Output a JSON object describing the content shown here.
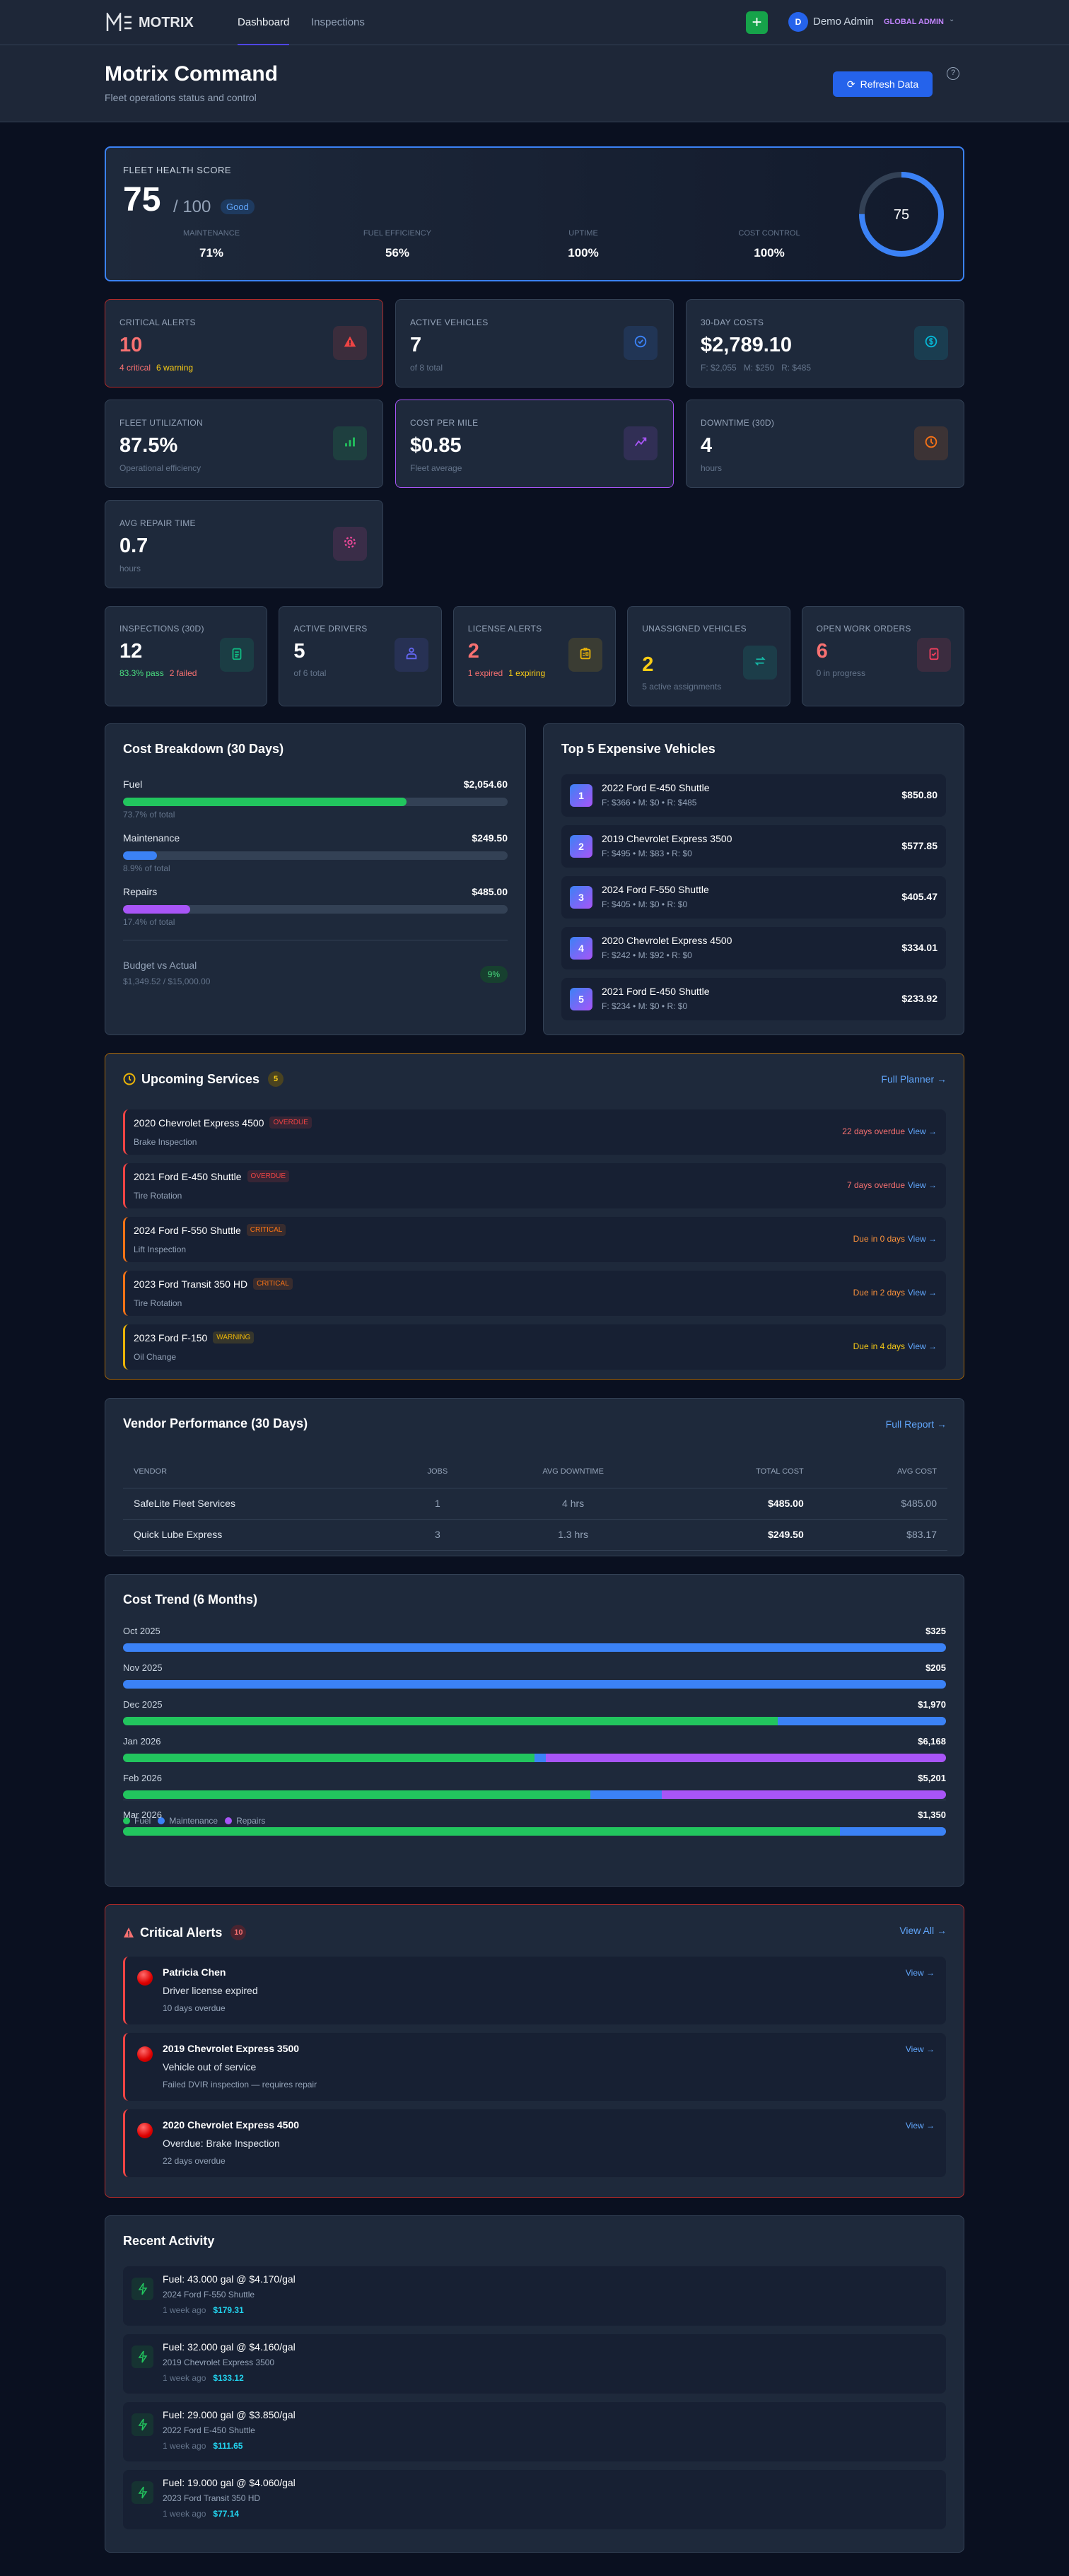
{
  "nav": {
    "brand": "MOTRIX",
    "tabs": [
      "Dashboard",
      "Inspections"
    ],
    "add_label": "+",
    "user_initial": "D",
    "user_name": "Demo Admin",
    "user_role": "GLOBAL ADMIN"
  },
  "header": {
    "title": "Motrix Command",
    "subtitle": "Fleet operations status and control",
    "refresh_label": "Refresh Data",
    "help": "?"
  },
  "health": {
    "label": "FLEET HEALTH SCORE",
    "score": "75",
    "max": "/ 100",
    "status": "Good",
    "score_value": 75,
    "metrics": [
      {
        "label": "MAINTENANCE",
        "value": "71%"
      },
      {
        "label": "FUEL EFFICIENCY",
        "value": "56%"
      },
      {
        "label": "UPTIME",
        "value": "100%"
      },
      {
        "label": "COST CONTROL",
        "value": "100%"
      }
    ]
  },
  "stats": [
    {
      "label": "CRITICAL ALERTS",
      "value": "10",
      "sub": [
        "4 critical",
        "6 warning"
      ],
      "icon": "alert-triangle-icon",
      "color": "#ef4444"
    },
    {
      "label": "ACTIVE VEHICLES",
      "value": "7",
      "sub": [
        "of 8 total"
      ],
      "icon": "check-circle-icon",
      "color": "#3b82f6"
    },
    {
      "label": "30-DAY COSTS",
      "value": "$2,789.10",
      "sub": [
        "F: $2,055   M: $250   R: $485"
      ],
      "icon": "dollar-icon",
      "color": "#06b6d4"
    },
    {
      "label": "FLEET UTILIZATION",
      "value": "87.5%",
      "sub": [
        "Operational efficiency"
      ],
      "icon": "bar-chart-icon",
      "color": "#22c55e"
    },
    {
      "label": "COST PER MILE",
      "value": "$0.85",
      "sub": [
        "Fleet average"
      ],
      "icon": "trending-up-icon",
      "color": "#a855f7"
    },
    {
      "label": "DOWNTIME (30D)",
      "value": "4",
      "sub": [
        "hours"
      ],
      "icon": "clock-icon",
      "color": "#f97316"
    },
    {
      "label": "AVG REPAIR TIME",
      "value": "0.7",
      "sub": [
        "hours"
      ],
      "icon": "gear-icon",
      "color": "#ec4899"
    }
  ],
  "stats2": [
    {
      "label": "INSPECTIONS (30D)",
      "value": "12",
      "sub": [
        "83.3% pass",
        "2 failed"
      ],
      "icon": "clipboard-icon",
      "color": "#10b981"
    },
    {
      "label": "ACTIVE DRIVERS",
      "value": "5",
      "sub": [
        "of 6 total"
      ],
      "icon": "user-icon",
      "color": "#6366f1"
    },
    {
      "label": "LICENSE ALERTS",
      "value": "2",
      "sub": [
        "1 expired",
        "1 expiring"
      ],
      "icon": "id-card-icon",
      "color": "#eab308"
    },
    {
      "label": "UNASSIGNED VEHICLES",
      "value": "2",
      "sub": [
        "5 active assignments"
      ],
      "icon": "swap-icon",
      "color": "#14b8a6"
    },
    {
      "label": "OPEN WORK ORDERS",
      "value": "6",
      "sub": [
        "0 in progress"
      ],
      "icon": "clipboard-check-icon",
      "color": "#f43f5e"
    }
  ],
  "cost_breakdown": {
    "title": "Cost Breakdown (30 Days)",
    "items": [
      {
        "name": "Fuel",
        "amount": "$2,054.60",
        "pct": 73.7,
        "pct_label": "73.7% of total",
        "color": "#22c55e"
      },
      {
        "name": "Maintenance",
        "amount": "$249.50",
        "pct": 8.9,
        "pct_label": "8.9% of total",
        "color": "#3b82f6"
      },
      {
        "name": "Repairs",
        "amount": "$485.00",
        "pct": 17.4,
        "pct_label": "17.4% of total",
        "color": "#a855f7"
      }
    ],
    "budget_label": "Budget vs Actual",
    "budget_value": "$1,349.52 / $15,000.00",
    "budget_pct": "9%"
  },
  "top_vehicles": {
    "title": "Top 5 Expensive Vehicles",
    "items": [
      {
        "rank": "1",
        "name": "2022 Ford E-450 Shuttle",
        "split": "F: $366 • M: $0 • R: $485",
        "cost": "$850.80"
      },
      {
        "rank": "2",
        "name": "2019 Chevrolet Express 3500",
        "split": "F: $495 • M: $83 • R: $0",
        "cost": "$577.85"
      },
      {
        "rank": "3",
        "name": "2024 Ford F-550 Shuttle",
        "split": "F: $405 • M: $0 • R: $0",
        "cost": "$405.47"
      },
      {
        "rank": "4",
        "name": "2020 Chevrolet Express 4500",
        "split": "F: $242 • M: $92 • R: $0",
        "cost": "$334.01"
      },
      {
        "rank": "5",
        "name": "2021 Ford E-450 Shuttle",
        "split": "F: $234 • M: $0 • R: $0",
        "cost": "$233.92"
      }
    ]
  },
  "services": {
    "title": "Upcoming Services",
    "count": "5",
    "link": "Full Planner →",
    "items": [
      {
        "vehicle": "2020 Chevrolet Express 4500",
        "badge": "OVERDUE",
        "task": "Brake Inspection",
        "due": "22 days overdue",
        "view": "View →",
        "color": "#ef4444"
      },
      {
        "vehicle": "2021 Ford E-450 Shuttle",
        "badge": "OVERDUE",
        "task": "Tire Rotation",
        "due": "7 days overdue",
        "view": "View →",
        "color": "#ef4444"
      },
      {
        "vehicle": "2024 Ford F-550 Shuttle",
        "badge": "CRITICAL",
        "task": "Lift Inspection",
        "due": "Due in 0 days",
        "view": "View →",
        "color": "#f97316"
      },
      {
        "vehicle": "2023 Ford Transit 350 HD",
        "badge": "CRITICAL",
        "task": "Tire Rotation",
        "due": "Due in 2 days",
        "view": "View →",
        "color": "#f97316"
      },
      {
        "vehicle": "2023 Ford F-150",
        "badge": "WARNING",
        "task": "Oil Change",
        "due": "Due in 4 days",
        "view": "View →",
        "color": "#eab308"
      }
    ]
  },
  "vendors": {
    "title": "Vendor Performance (30 Days)",
    "link": "Full Report →",
    "columns": [
      "VENDOR",
      "JOBS",
      "AVG DOWNTIME",
      "TOTAL COST",
      "AVG COST"
    ],
    "rows": [
      [
        "SafeLite Fleet Services",
        "1",
        "4 hrs",
        "$485.00",
        "$485.00"
      ],
      [
        "Quick Lube Express",
        "3",
        "1.3 hrs",
        "$249.50",
        "$83.17"
      ]
    ]
  },
  "chart_data": {
    "type": "bar",
    "title": "Cost Trend (6 Months)",
    "stacked": true,
    "orientation": "horizontal",
    "categories": [
      "Oct 2025",
      "Nov 2025",
      "Dec 2025",
      "Jan 2026",
      "Feb 2026",
      "Mar 2026"
    ],
    "totals": [
      "$325",
      "$205",
      "$1,970",
      "$6,168",
      "$5,201",
      "$1,350"
    ],
    "series": [
      {
        "name": "Fuel",
        "color": "#22c55e",
        "values": [
          0,
          0,
          1568,
          3084,
          2955,
          1176
        ]
      },
      {
        "name": "Maintenance",
        "color": "#3b82f6",
        "values": [
          325,
          205,
          402,
          84,
          451,
          174
        ]
      },
      {
        "name": "Repairs",
        "color": "#a855f7",
        "values": [
          0,
          0,
          0,
          3000,
          1795,
          0
        ]
      }
    ],
    "legend": "bottom-left"
  },
  "alerts": {
    "title": "Critical Alerts",
    "count": "10",
    "link": "View All →",
    "items": [
      {
        "title": "Patricia Chen",
        "msg": "Driver license expired",
        "detail": "10 days overdue",
        "view": "View →"
      },
      {
        "title": "2019 Chevrolet Express 3500",
        "msg": "Vehicle out of service",
        "detail": "Failed DVIR inspection — requires repair",
        "view": "View →"
      },
      {
        "title": "2020 Chevrolet Express 4500",
        "msg": "Overdue: Brake Inspection",
        "detail": "22 days overdue",
        "view": "View →"
      }
    ]
  },
  "activity": {
    "title": "Recent Activity",
    "items": [
      {
        "title": "Fuel: 43.000 gal @ $4.170/gal",
        "vehicle": "2024 Ford F-550 Shuttle",
        "time": "1 week ago",
        "amount": "$179.31"
      },
      {
        "title": "Fuel: 32.000 gal @ $4.160/gal",
        "vehicle": "2019 Chevrolet Express 3500",
        "time": "1 week ago",
        "amount": "$133.12"
      },
      {
        "title": "Fuel: 29.000 gal @ $3.850/gal",
        "vehicle": "2022 Ford E-450 Shuttle",
        "time": "1 week ago",
        "amount": "$111.65"
      },
      {
        "title": "Fuel: 19.000 gal @ $4.060/gal",
        "vehicle": "2023 Ford Transit 350 HD",
        "time": "1 week ago",
        "amount": "$77.14"
      }
    ]
  }
}
